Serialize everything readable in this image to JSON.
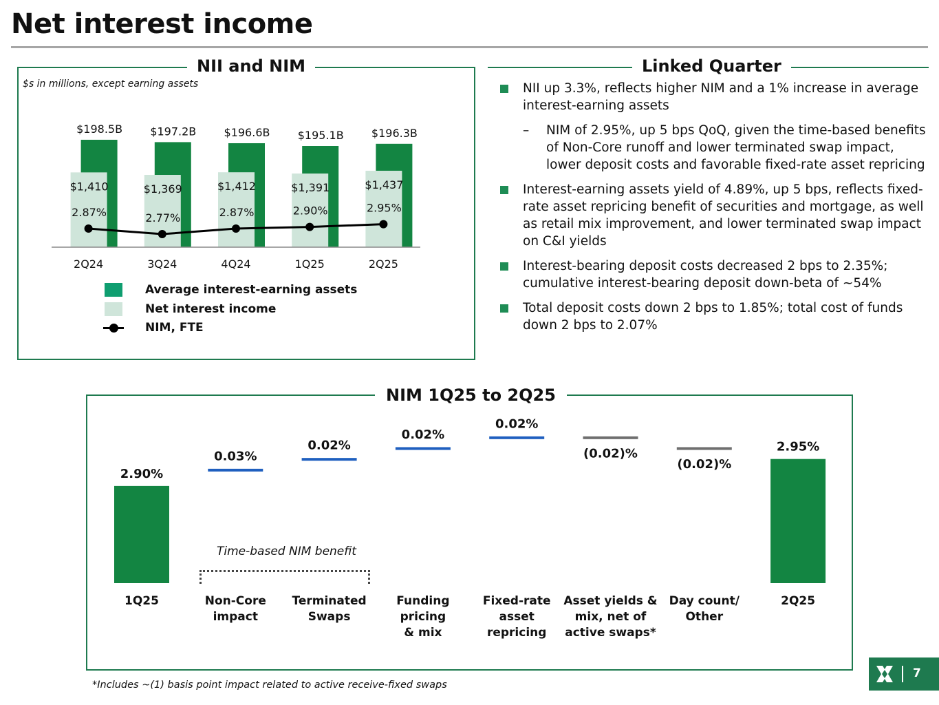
{
  "page": {
    "title": "Net interest income",
    "page_number": "7",
    "footnote": "*Includes ~(1) basis point impact related to active receive-fixed swaps"
  },
  "nii_panel": {
    "heading": "NII and NIM",
    "note": "$s in millions, except earning assets"
  },
  "linked_quarter": {
    "heading": "Linked Quarter",
    "bullets": [
      {
        "text": "NII up 3.3%, reflects higher NIM and a 1% increase in average interest-earning assets",
        "sub": "NIM of 2.95%, up 5 bps QoQ, given the time-based benefits of Non-Core runoff and lower terminated swap impact, lower deposit costs and favorable fixed-rate asset repricing"
      },
      {
        "text": "Interest-earning assets yield of 4.89%, up 5 bps, reflects fixed-rate asset repricing benefit of securities and mortgage, as well as retail mix improvement, and lower terminated swap impact on C&I yields"
      },
      {
        "text": "Interest-bearing deposit costs decreased 2 bps to 2.35%; cumulative interest-bearing deposit down-beta of ~54%"
      },
      {
        "text": "Total deposit costs down 2 bps to 1.85%; total cost of funds down 2 bps to 2.07%"
      }
    ]
  },
  "bridge_panel": {
    "heading": "NIM 1Q25 to 2Q25",
    "bracket_note": "Time-based NIM benefit"
  },
  "colors": {
    "brand_green": "#1e7a4f",
    "assets_bar": "#138542",
    "nii_bar": "#cfe5da",
    "legend_assets": "#0f9e70",
    "nim_line": "#000000",
    "increase_line": "#1f5fbf",
    "decrease_line": "#6f6f6f",
    "bullet": "#1e8c55"
  },
  "chart_data": [
    {
      "type": "bar",
      "categories": [
        "2Q24",
        "3Q24",
        "4Q24",
        "1Q25",
        "2Q25"
      ],
      "series": [
        {
          "name": "Average interest-earning assets",
          "values": [
            198.5,
            197.2,
            196.6,
            195.1,
            196.3
          ],
          "labels": [
            "$198.5B",
            "$197.2B",
            "$196.6B",
            "$195.1B",
            "$196.3B"
          ],
          "unit": "$B"
        },
        {
          "name": "Net interest income",
          "values": [
            1410,
            1369,
            1412,
            1391,
            1437
          ],
          "labels": [
            "$1,410",
            "$1,369",
            "$1,412",
            "$1,391",
            "$1,437"
          ],
          "unit": "$M"
        },
        {
          "name": "NIM, FTE",
          "type": "line",
          "values": [
            2.87,
            2.77,
            2.87,
            2.9,
            2.95
          ],
          "labels": [
            "2.87%",
            "2.77%",
            "2.87%",
            "2.90%",
            "2.95%"
          ],
          "unit": "%"
        }
      ],
      "legend": [
        "Average interest-earning assets",
        "Net interest income",
        "NIM, FTE"
      ],
      "legend_position": "bottom"
    },
    {
      "type": "waterfall",
      "categories": [
        "1Q25",
        "Non-Core impact",
        "Terminated Swaps",
        "Funding pricing & mix",
        "Fixed-rate asset repricing",
        "Asset yields & mix, net of active swaps*",
        "Day count/ Other",
        "2Q25"
      ],
      "category_lines": [
        [
          "1Q25"
        ],
        [
          "Non-Core",
          "impact"
        ],
        [
          "Terminated",
          "Swaps"
        ],
        [
          "Funding",
          "pricing",
          "& mix"
        ],
        [
          "Fixed-rate",
          "asset",
          "repricing"
        ],
        [
          "Asset yields &",
          "mix, net of",
          "active swaps*"
        ],
        [
          "Day count/",
          "Other"
        ],
        [
          "2Q25"
        ]
      ],
      "values": [
        2.9,
        0.03,
        0.02,
        0.02,
        0.02,
        -0.02,
        -0.02,
        2.95
      ],
      "kinds": [
        "total",
        "delta",
        "delta",
        "delta",
        "delta",
        "delta",
        "delta",
        "total"
      ],
      "labels": [
        "2.90%",
        "0.03%",
        "0.02%",
        "0.02%",
        "0.02%",
        "(0.02)%",
        "(0.02)%",
        "2.95%"
      ],
      "unit": "%"
    }
  ]
}
